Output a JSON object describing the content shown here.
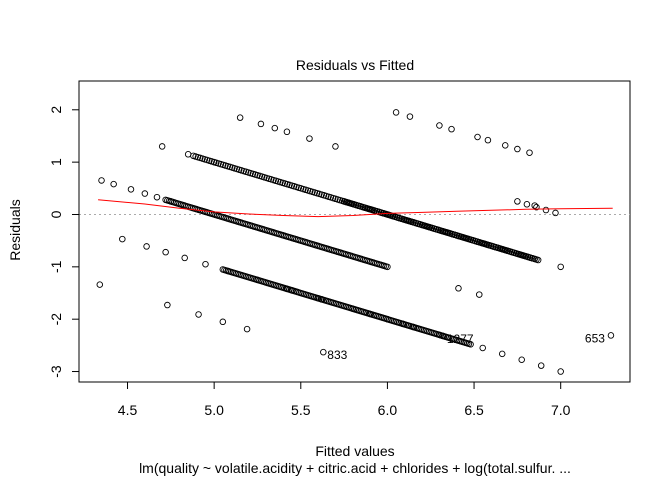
{
  "chart_data": {
    "type": "scatter",
    "title": "Residuals vs Fitted",
    "xlabel": "Fitted values",
    "ylabel": "Residuals",
    "subtitle": "lm(quality ~ volatile.acidity + citric.acid + chlorides + log(total.sulfur. ...",
    "xlim": [
      4.22,
      7.4
    ],
    "ylim": [
      -3.2,
      2.55
    ],
    "xticks": [
      4.5,
      5.0,
      5.5,
      6.0,
      6.5,
      7.0
    ],
    "xtick_labels": [
      "4.5",
      "5.0",
      "5.5",
      "6.0",
      "6.5",
      "7.0"
    ],
    "yticks": [
      -3,
      -2,
      -1,
      0,
      1,
      2
    ],
    "ytick_labels": [
      "-3",
      "-2",
      "-1",
      "0",
      "1",
      "2"
    ],
    "grid": false,
    "legend": "none",
    "reference_line": {
      "y": 0,
      "style": "dotted",
      "color": "#aaaaaa"
    },
    "colors": {
      "points": "#000000",
      "smoother": "#ff0000",
      "reference": "#aaaaaa"
    },
    "bands": [
      {
        "quality": 3,
        "x": [
          4.34,
          4.47,
          4.61,
          4.73,
          4.91,
          5.05,
          5.19,
          5.45,
          5.62,
          5.9,
          6.09
        ],
        "y": [
          -1.34,
          -0.47,
          -0.61,
          -1.73,
          -1.91,
          -2.05,
          -2.19,
          -1.45,
          -1.62,
          -1.9,
          -2.09
        ]
      },
      {
        "quality": 4,
        "x": [
          4.72,
          4.83,
          4.95,
          5.08,
          5.25,
          5.42,
          5.6,
          5.8,
          6.0,
          6.15,
          6.3,
          6.41,
          6.53
        ],
        "y": [
          -0.72,
          -0.83,
          -0.95,
          -1.08,
          -1.25,
          -1.42,
          -1.6,
          -1.8,
          -2.0,
          -2.15,
          -2.3,
          -1.41,
          -1.53
        ]
      },
      {
        "quality": 6,
        "x": [
          4.7,
          4.85,
          5.0,
          5.15,
          5.27,
          5.35,
          5.42,
          5.55,
          5.7
        ],
        "y": [
          1.3,
          1.15,
          1.0,
          1.85,
          1.73,
          1.65,
          1.58,
          1.45,
          1.3
        ]
      },
      {
        "quality": 7,
        "x": [
          6.05,
          6.13,
          6.3,
          6.37,
          6.52,
          6.58,
          6.68,
          6.75,
          6.82
        ],
        "y": [
          1.95,
          1.87,
          1.7,
          1.63,
          1.48,
          1.42,
          1.32,
          1.25,
          1.18
        ]
      },
      {
        "quality": 5,
        "x": [
          4.35,
          4.42,
          4.52,
          4.6,
          4.67,
          4.75
        ],
        "y": [
          0.65,
          0.58,
          0.48,
          0.4,
          0.33,
          0.25
        ]
      }
    ],
    "dense_bands": [
      {
        "quality": 5,
        "x_range": [
          4.72,
          6.0
        ],
        "count": 130
      },
      {
        "quality": 6,
        "x_range": [
          4.88,
          6.85
        ],
        "count": 150
      },
      {
        "quality": 5,
        "x_range": [
          5.05,
          6.48
        ],
        "count": 150,
        "note_offset": -1
      },
      {
        "quality": 6,
        "x_range": [
          5.75,
          6.86
        ],
        "count": 95
      },
      {
        "quality": 7,
        "x_range": [
          6.75,
          6.97
        ],
        "count": 5
      },
      {
        "quality": 4,
        "x_range": [
          6.55,
          7.0
        ],
        "count": 5
      }
    ],
    "extra_points": {
      "x": [
        6.85,
        6.87,
        7.0
      ],
      "y": [
        0.17,
        -0.87,
        -1.0
      ]
    },
    "smoother": {
      "x": [
        4.33,
        4.6,
        4.8,
        5.0,
        5.2,
        5.4,
        5.6,
        5.8,
        6.0,
        6.2,
        6.4,
        6.6,
        6.8,
        7.0,
        7.3
      ],
      "y": [
        0.28,
        0.2,
        0.12,
        0.05,
        0.01,
        -0.02,
        -0.04,
        -0.02,
        0.02,
        0.04,
        0.06,
        0.08,
        0.1,
        0.11,
        0.12
      ]
    },
    "outliers": [
      {
        "label": "833",
        "x": 5.63,
        "y": -2.63
      },
      {
        "label": "1277",
        "x": 6.32,
        "y": -2.32
      },
      {
        "label": "653",
        "x": 7.29,
        "y": -2.31
      }
    ]
  }
}
